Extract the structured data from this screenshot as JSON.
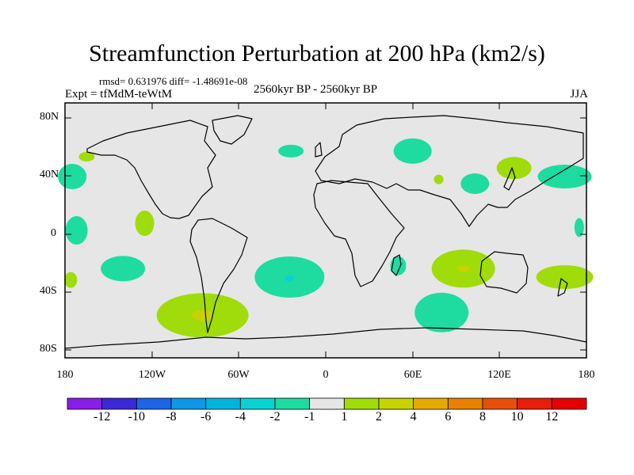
{
  "title": "Streamfunction Perturbation at 200 hPa (km2/s)",
  "stats": "rmsd= 0.631976  diff= -1.48691e-08",
  "expt": "Expt = tfMdM-teWtM",
  "period": "2560kyr BP - 2560kyr BP",
  "season": "JJA",
  "axes": {
    "y_ticks": [
      "80N",
      "40N",
      "0",
      "40S",
      "80S"
    ],
    "x_ticks": [
      "180",
      "120W",
      "60W",
      "0",
      "60E",
      "120E",
      "180"
    ]
  },
  "colorbar": {
    "labels": [
      "-12",
      "-10",
      "-8",
      "-6",
      "-4",
      "-2",
      "-1",
      "1",
      "2",
      "4",
      "6",
      "8",
      "10",
      "12"
    ],
    "colors": [
      "#8a1ee6",
      "#3d28d6",
      "#1e64e6",
      "#0f96e6",
      "#00b4dc",
      "#0ad2d2",
      "#1edca0",
      "#e6e6e6",
      "#a0dc0a",
      "#c8d200",
      "#e6aa00",
      "#e68200",
      "#e6500a",
      "#e61e0a",
      "#e60000"
    ]
  },
  "colors": {
    "background": "#e6e6e6",
    "coast": "#000000"
  },
  "chart_data": {
    "type": "contour-map",
    "field": "streamfunction perturbation",
    "level_hPa": 200,
    "units": "km2/s",
    "lon_range": [
      -180,
      180
    ],
    "lat_range": [
      -90,
      90
    ],
    "anomalies": [
      {
        "lon": -172,
        "lat": 0,
        "value": -1.5
      },
      {
        "lon": -175,
        "lat": 38,
        "value": -1.5
      },
      {
        "lon": -165,
        "lat": 52,
        "value": 1.5
      },
      {
        "lon": -125,
        "lat": 5,
        "value": 1.5
      },
      {
        "lon": -140,
        "lat": -27,
        "value": -1.5
      },
      {
        "lon": -176,
        "lat": -35,
        "value": 1.5
      },
      {
        "lon": -25,
        "lat": -33,
        "value": -1.5
      },
      {
        "lon": -25,
        "lat": -34,
        "value": -2.5
      },
      {
        "lon": -24,
        "lat": 56,
        "value": -1.5
      },
      {
        "lon": -85,
        "lat": -60,
        "value": 1.5
      },
      {
        "lon": -85,
        "lat": -60,
        "value": 3
      },
      {
        "lon": 60,
        "lat": 56,
        "value": -1.5
      },
      {
        "lon": 78,
        "lat": 36,
        "value": 1.5
      },
      {
        "lon": 103,
        "lat": 33,
        "value": -1.5
      },
      {
        "lon": 130,
        "lat": 44,
        "value": 1.5
      },
      {
        "lon": 165,
        "lat": 38,
        "value": -1.5
      },
      {
        "lon": 175,
        "lat": 2,
        "value": -1.5
      },
      {
        "lon": 50,
        "lat": -25,
        "value": -1.5
      },
      {
        "lon": 95,
        "lat": -27,
        "value": 1.5
      },
      {
        "lon": 95,
        "lat": -27,
        "value": 3
      },
      {
        "lon": 80,
        "lat": -58,
        "value": -1.5
      },
      {
        "lon": 165,
        "lat": -33,
        "value": 1.5
      }
    ]
  }
}
